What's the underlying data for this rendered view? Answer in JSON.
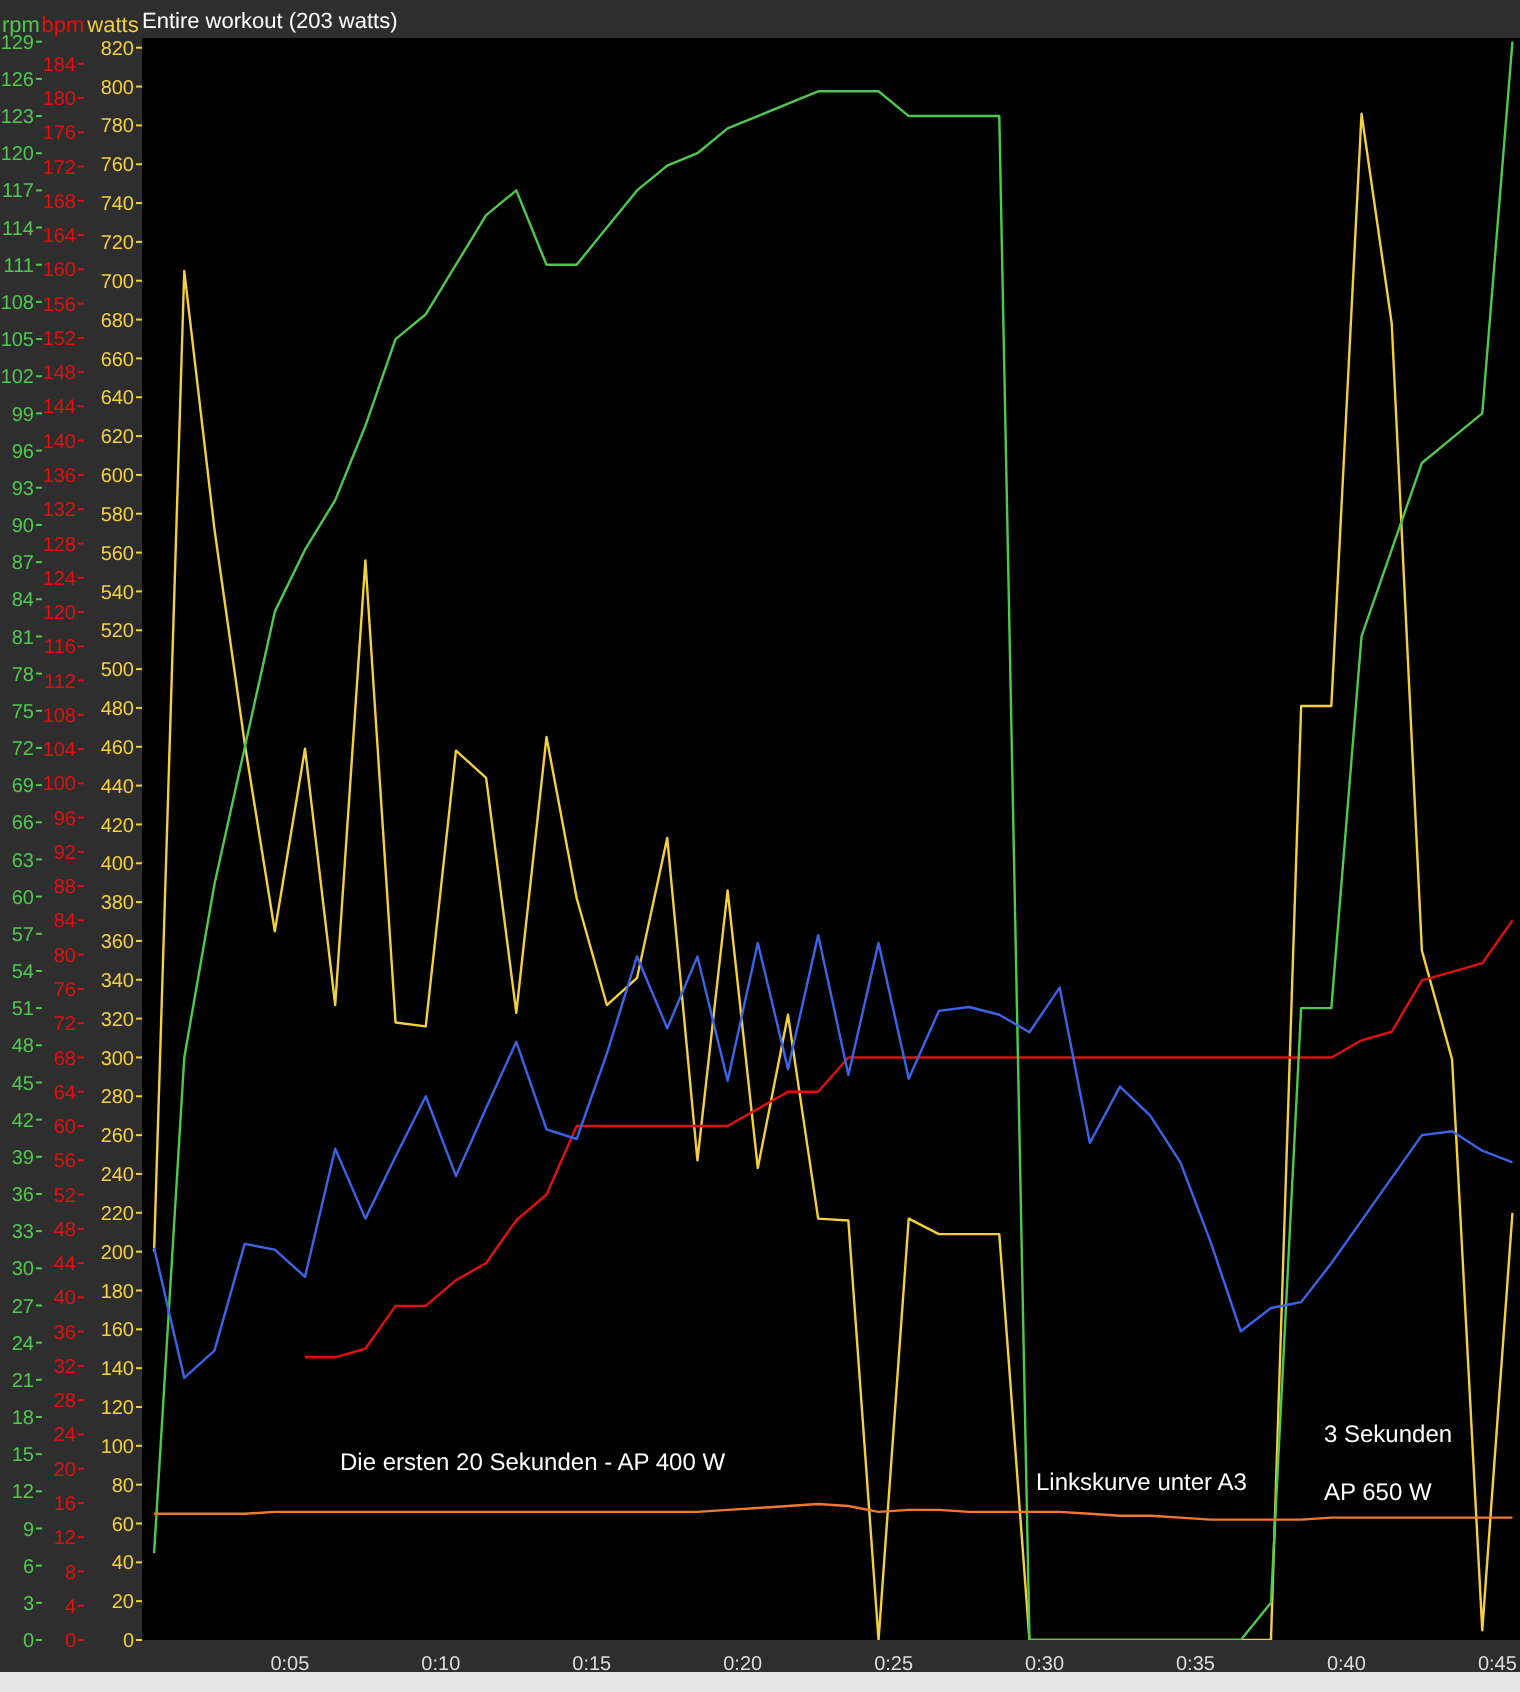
{
  "chart_data": {
    "type": "line",
    "title": "Entire workout (203 watts)",
    "ylabel": "watts",
    "y2label": "bpm",
    "y3label": "rpm",
    "x": [
      0.5,
      1.5,
      2.5,
      3.5,
      4.5,
      5.5,
      6.5,
      7.5,
      8.5,
      9.5,
      10.5,
      11.5,
      12.5,
      13.5,
      14.5,
      15.5,
      16.5,
      17.5,
      18.5,
      19.5,
      20.5,
      21.5,
      22.5,
      23.5,
      24.5,
      25.5,
      26.5,
      27.5,
      28.5,
      29.5,
      30.5,
      31.5,
      32.5,
      33.5,
      34.5,
      35.5,
      36.5,
      37.5,
      38.5,
      39.5,
      40.5,
      41.5,
      42.5,
      43.5,
      44.5,
      45.5
    ],
    "xlim": [
      0.1,
      45.75
    ],
    "xticks": [
      {
        "value": 5,
        "label": "0:05"
      },
      {
        "value": 10,
        "label": "0:10"
      },
      {
        "value": 15,
        "label": "0:15"
      },
      {
        "value": 20,
        "label": "0:20"
      },
      {
        "value": 25,
        "label": "0:25"
      },
      {
        "value": 30,
        "label": "0:30"
      },
      {
        "value": 35,
        "label": "0:35"
      },
      {
        "value": 40,
        "label": "0:40"
      },
      {
        "value": 45,
        "label": "0:45"
      }
    ],
    "ylim": [
      0,
      825
    ],
    "yticks": [
      0,
      20,
      40,
      60,
      80,
      100,
      120,
      140,
      160,
      180,
      200,
      220,
      240,
      260,
      280,
      300,
      320,
      340,
      360,
      380,
      400,
      420,
      440,
      460,
      480,
      500,
      520,
      540,
      560,
      580,
      600,
      620,
      640,
      660,
      680,
      700,
      720,
      740,
      760,
      780,
      800,
      820
    ],
    "y2lim": [
      0,
      187
    ],
    "y2ticks": [
      0,
      4,
      8,
      12,
      16,
      20,
      24,
      28,
      32,
      36,
      40,
      44,
      48,
      52,
      56,
      60,
      64,
      68,
      72,
      76,
      80,
      84,
      88,
      92,
      96,
      100,
      104,
      108,
      112,
      116,
      120,
      124,
      128,
      132,
      136,
      140,
      144,
      148,
      152,
      156,
      160,
      164,
      168,
      172,
      176,
      180,
      184
    ],
    "y3lim": [
      0,
      129.3
    ],
    "y3ticks": [
      0,
      3,
      6,
      9,
      12,
      15,
      18,
      21,
      24,
      27,
      30,
      33,
      36,
      39,
      42,
      45,
      48,
      51,
      54,
      57,
      60,
      63,
      66,
      69,
      72,
      75,
      78,
      81,
      84,
      87,
      90,
      93,
      96,
      99,
      102,
      105,
      108,
      111,
      114,
      117,
      120,
      123,
      126,
      129
    ],
    "series": [
      {
        "color": "#f2d040",
        "axis": "y",
        "values": [
          200,
          705,
          572,
          462,
          365,
          459,
          327,
          556,
          318,
          316,
          458,
          444,
          323,
          465,
          382,
          327,
          341,
          413,
          247,
          386,
          243,
          322,
          217,
          216,
          0,
          217,
          209,
          209,
          209,
          0,
          0,
          0,
          0,
          0,
          0,
          0,
          0,
          0,
          481,
          481,
          786,
          678,
          355,
          299,
          5,
          220
        ]
      },
      {
        "color": "#e01010",
        "axis": "y2",
        "values": [
          null,
          null,
          null,
          null,
          null,
          33,
          33,
          34,
          39,
          39,
          42,
          44,
          49,
          52,
          60,
          60,
          60,
          60,
          60,
          60,
          62,
          64,
          64,
          68,
          68,
          68,
          68,
          68,
          68,
          68,
          68,
          68,
          68,
          68,
          68,
          68,
          68,
          68,
          68,
          68,
          70,
          71,
          77,
          78,
          79,
          84
        ]
      },
      {
        "color": "#50c850",
        "axis": "y3",
        "values": [
          7,
          47,
          61,
          72,
          83,
          88,
          92,
          98,
          105,
          107,
          111,
          115,
          117,
          111,
          111,
          114,
          117,
          119,
          120,
          122,
          123,
          124,
          125,
          125,
          125,
          123,
          123,
          123,
          123,
          0,
          0,
          0,
          0,
          0,
          0,
          0,
          0,
          3,
          51,
          51,
          81,
          88,
          95,
          97,
          99,
          129
        ]
      },
      {
        "color": "#3c64e6",
        "axis": "y",
        "values": [
          202,
          135,
          149,
          204,
          201,
          187,
          253,
          217,
          249,
          280,
          239,
          274,
          308,
          263,
          258,
          302,
          352,
          315,
          352,
          288,
          359,
          294,
          363,
          291,
          359,
          289,
          324,
          326,
          322,
          313,
          336,
          256,
          285,
          270,
          246,
          205,
          159,
          171,
          174,
          194,
          216,
          238,
          260,
          262,
          252,
          246
        ]
      },
      {
        "color": "#f07830",
        "axis": "y",
        "values": [
          65,
          65,
          65,
          65,
          66,
          66,
          66,
          66,
          66,
          66,
          66,
          66,
          66,
          66,
          66,
          66,
          66,
          66,
          66,
          67,
          68,
          69,
          70,
          69,
          66,
          67,
          67,
          66,
          66,
          66,
          66,
          65,
          64,
          64,
          63,
          62,
          62,
          62,
          62,
          63,
          63,
          63,
          63,
          63,
          63,
          63
        ]
      }
    ],
    "annotations": [
      "Die ersten 20 Sekunden - AP 400 W",
      "Linkskurve unter A3",
      "3 Sekunden",
      "AP 650 W"
    ]
  }
}
